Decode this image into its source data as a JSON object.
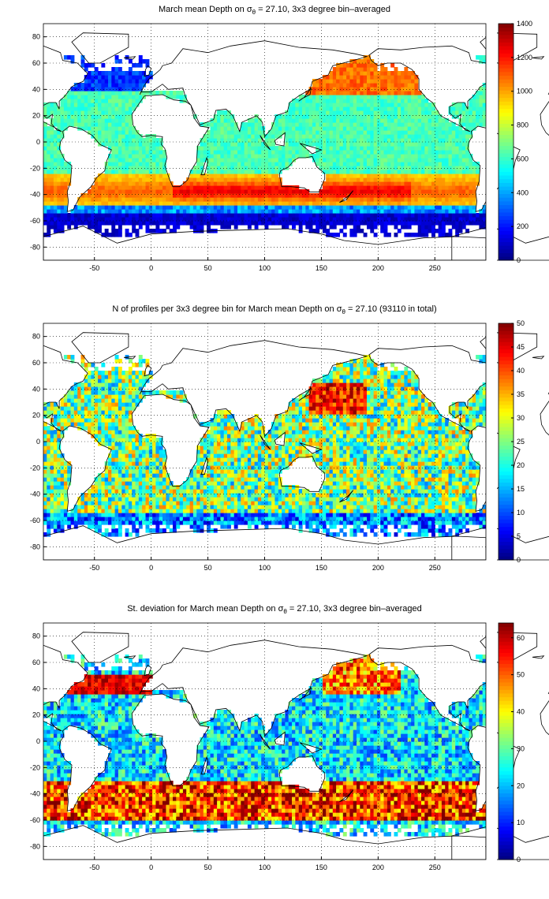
{
  "chart_data": [
    {
      "type": "heatmap",
      "title": {
        "pre": "March mean Depth on σ",
        "sub": "θ",
        "post": " = 27.10, 3x3 degree bin–averaged"
      },
      "x_ticks": [
        -50,
        0,
        50,
        100,
        150,
        200,
        250
      ],
      "y_ticks": [
        -80,
        -60,
        -40,
        -20,
        0,
        20,
        40,
        60,
        80
      ],
      "xlim": [
        -95,
        295
      ],
      "ylim": [
        -90,
        90
      ],
      "grid": true,
      "colorbar": {
        "min": 0,
        "max": 1400,
        "ticks": [
          0,
          200,
          400,
          600,
          800,
          1000,
          1200,
          1400
        ]
      }
    },
    {
      "type": "heatmap",
      "title": {
        "pre": "N of profiles per 3x3 degree bin for March mean Depth on σ",
        "sub": "θ",
        "post": " = 27.10 (93110 in total)"
      },
      "x_ticks": [
        -50,
        0,
        50,
        100,
        150,
        200,
        250
      ],
      "y_ticks": [
        -80,
        -60,
        -40,
        -20,
        0,
        20,
        40,
        60,
        80
      ],
      "xlim": [
        -95,
        295
      ],
      "ylim": [
        -90,
        90
      ],
      "grid": true,
      "colorbar": {
        "min": 0,
        "max": 50,
        "ticks": [
          0,
          5,
          10,
          15,
          20,
          25,
          30,
          35,
          40,
          45,
          50
        ]
      }
    },
    {
      "type": "heatmap",
      "title": {
        "pre": "St. deviation for March mean Depth on σ",
        "sub": "θ",
        "post": " = 27.10, 3x3 degree bin–averaged"
      },
      "x_ticks": [
        -50,
        0,
        50,
        100,
        150,
        200,
        250
      ],
      "y_ticks": [
        -80,
        -60,
        -40,
        -20,
        0,
        20,
        40,
        60,
        80
      ],
      "xlim": [
        -95,
        295
      ],
      "ylim": [
        -90,
        90
      ],
      "grid": true,
      "colorbar": {
        "min": 0,
        "max": 64,
        "ticks": [
          0,
          10,
          20,
          30,
          40,
          50,
          60
        ]
      }
    }
  ]
}
